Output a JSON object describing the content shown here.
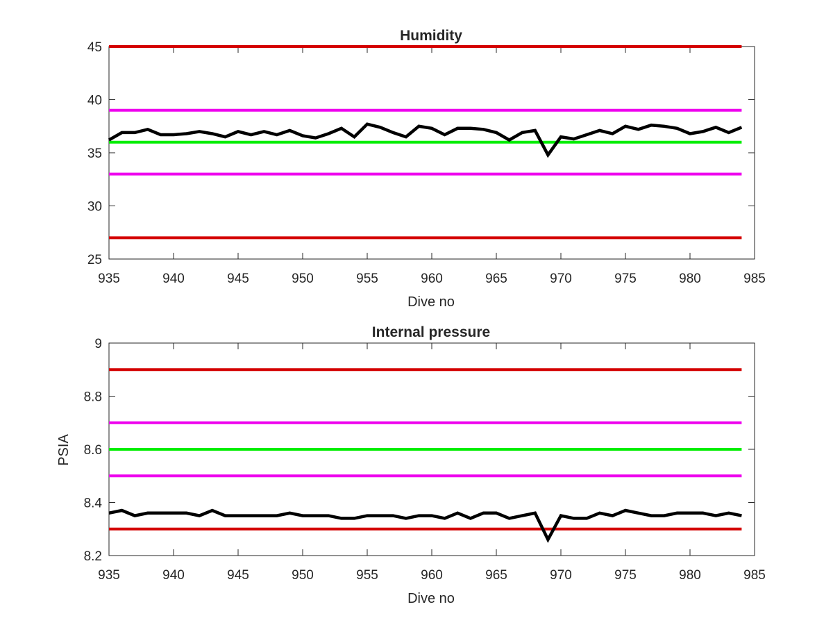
{
  "chart_data": [
    {
      "type": "line",
      "title": "Humidity",
      "xlabel": "Dive no",
      "ylabel": "",
      "xlim": [
        935,
        985
      ],
      "ylim": [
        25,
        45
      ],
      "xticks": [
        935,
        940,
        945,
        950,
        955,
        960,
        965,
        970,
        975,
        980,
        985
      ],
      "yticks": [
        25,
        30,
        35,
        40,
        45
      ],
      "tick_labels_x": [
        "935",
        "940",
        "945",
        "950",
        "955",
        "960",
        "965",
        "970",
        "975",
        "980",
        "985"
      ],
      "tick_labels_y": [
        "25",
        "30",
        "35",
        "40",
        "45"
      ],
      "grid": false,
      "limit_lines": [
        {
          "y": 45,
          "color": "#d40000"
        },
        {
          "y": 39,
          "color": "#ee00ee"
        },
        {
          "y": 36,
          "color": "#00ee00"
        },
        {
          "y": 33,
          "color": "#ee00ee"
        },
        {
          "y": 27,
          "color": "#d40000"
        }
      ],
      "series": [
        {
          "color": "#000000",
          "x": [
            935,
            936,
            937,
            938,
            939,
            940,
            941,
            942,
            943,
            944,
            945,
            946,
            947,
            948,
            949,
            950,
            951,
            952,
            953,
            954,
            955,
            956,
            957,
            958,
            959,
            960,
            961,
            962,
            963,
            964,
            965,
            966,
            967,
            968,
            969,
            970,
            971,
            972,
            973,
            974,
            975,
            976,
            977,
            978,
            979,
            980,
            981,
            982,
            983,
            984
          ],
          "y": [
            36.2,
            36.9,
            36.9,
            37.2,
            36.7,
            36.7,
            36.8,
            37.0,
            36.8,
            36.5,
            37.0,
            36.7,
            37.0,
            36.7,
            37.1,
            36.6,
            36.4,
            36.8,
            37.3,
            36.5,
            37.7,
            37.4,
            36.9,
            36.5,
            37.5,
            37.3,
            36.7,
            37.3,
            37.3,
            37.2,
            36.9,
            36.2,
            36.9,
            37.1,
            34.8,
            36.5,
            36.3,
            36.7,
            37.1,
            36.8,
            37.5,
            37.2,
            37.6,
            37.5,
            37.3,
            36.8,
            37.0,
            37.4,
            36.9,
            37.4
          ]
        }
      ]
    },
    {
      "type": "line",
      "title": "Internal pressure",
      "xlabel": "Dive no",
      "ylabel": "PSIA",
      "xlim": [
        935,
        985
      ],
      "ylim": [
        8.2,
        9
      ],
      "xticks": [
        935,
        940,
        945,
        950,
        955,
        960,
        965,
        970,
        975,
        980,
        985
      ],
      "yticks": [
        8.2,
        8.4,
        8.6,
        8.8,
        9
      ],
      "tick_labels_x": [
        "935",
        "940",
        "945",
        "950",
        "955",
        "960",
        "965",
        "970",
        "975",
        "980",
        "985"
      ],
      "tick_labels_y": [
        "8.2",
        "8.4",
        "8.6",
        "8.8",
        "9"
      ],
      "grid": false,
      "limit_lines": [
        {
          "y": 8.9,
          "color": "#d40000"
        },
        {
          "y": 8.7,
          "color": "#ee00ee"
        },
        {
          "y": 8.6,
          "color": "#00ee00"
        },
        {
          "y": 8.5,
          "color": "#ee00ee"
        },
        {
          "y": 8.3,
          "color": "#d40000"
        }
      ],
      "series": [
        {
          "color": "#000000",
          "x": [
            935,
            936,
            937,
            938,
            939,
            940,
            941,
            942,
            943,
            944,
            945,
            946,
            947,
            948,
            949,
            950,
            951,
            952,
            953,
            954,
            955,
            956,
            957,
            958,
            959,
            960,
            961,
            962,
            963,
            964,
            965,
            966,
            967,
            968,
            969,
            970,
            971,
            972,
            973,
            974,
            975,
            976,
            977,
            978,
            979,
            980,
            981,
            982,
            983,
            984
          ],
          "y": [
            8.36,
            8.37,
            8.35,
            8.36,
            8.36,
            8.36,
            8.36,
            8.35,
            8.37,
            8.35,
            8.35,
            8.35,
            8.35,
            8.35,
            8.36,
            8.35,
            8.35,
            8.35,
            8.34,
            8.34,
            8.35,
            8.35,
            8.35,
            8.34,
            8.35,
            8.35,
            8.34,
            8.36,
            8.34,
            8.36,
            8.36,
            8.34,
            8.35,
            8.36,
            8.26,
            8.35,
            8.34,
            8.34,
            8.36,
            8.35,
            8.37,
            8.36,
            8.35,
            8.35,
            8.36,
            8.36,
            8.36,
            8.35,
            8.36,
            8.35
          ]
        }
      ]
    }
  ]
}
